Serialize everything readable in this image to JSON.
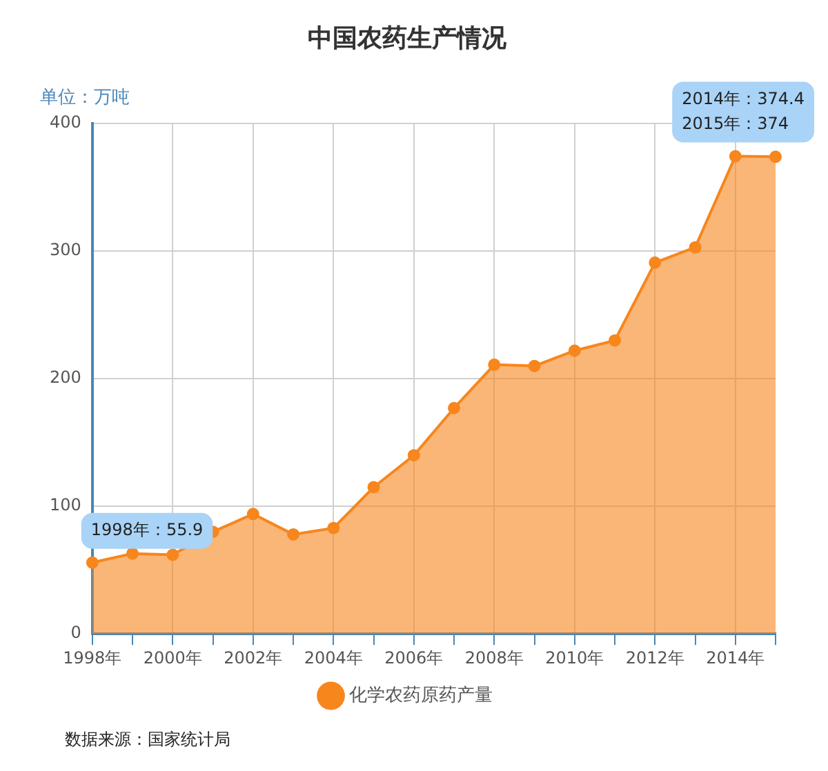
{
  "chart_data": {
    "type": "area",
    "title": "中国农药生产情况",
    "ylabel": "单位：万吨",
    "categories": [
      "1998年",
      null,
      "2000年",
      null,
      "2002年",
      null,
      "2004年",
      null,
      "2006年",
      null,
      "2008年",
      null,
      "2010年",
      null,
      "2012年",
      null,
      "2014年",
      null
    ],
    "series": [
      {
        "name": "化学农药原药产量",
        "color": "#f7861d",
        "values": [
          55.9,
          63,
          62,
          80,
          94,
          78,
          83,
          115,
          140,
          177,
          211,
          210,
          222,
          230,
          291,
          303,
          374.4,
          374
        ]
      }
    ],
    "ylim": [
      0,
      400
    ],
    "yticks": [
      0,
      100,
      200,
      300,
      400
    ],
    "grid": true,
    "legend": "bottom",
    "marker": "circle",
    "annotations": [
      {
        "text": "1998年：55.9",
        "x": "1998年",
        "y": 55.9
      },
      {
        "text": "2014年：374.4\n2015年：374",
        "x": "2014年",
        "y": 374.4
      },
      "数据来源：国家统计局"
    ]
  }
}
